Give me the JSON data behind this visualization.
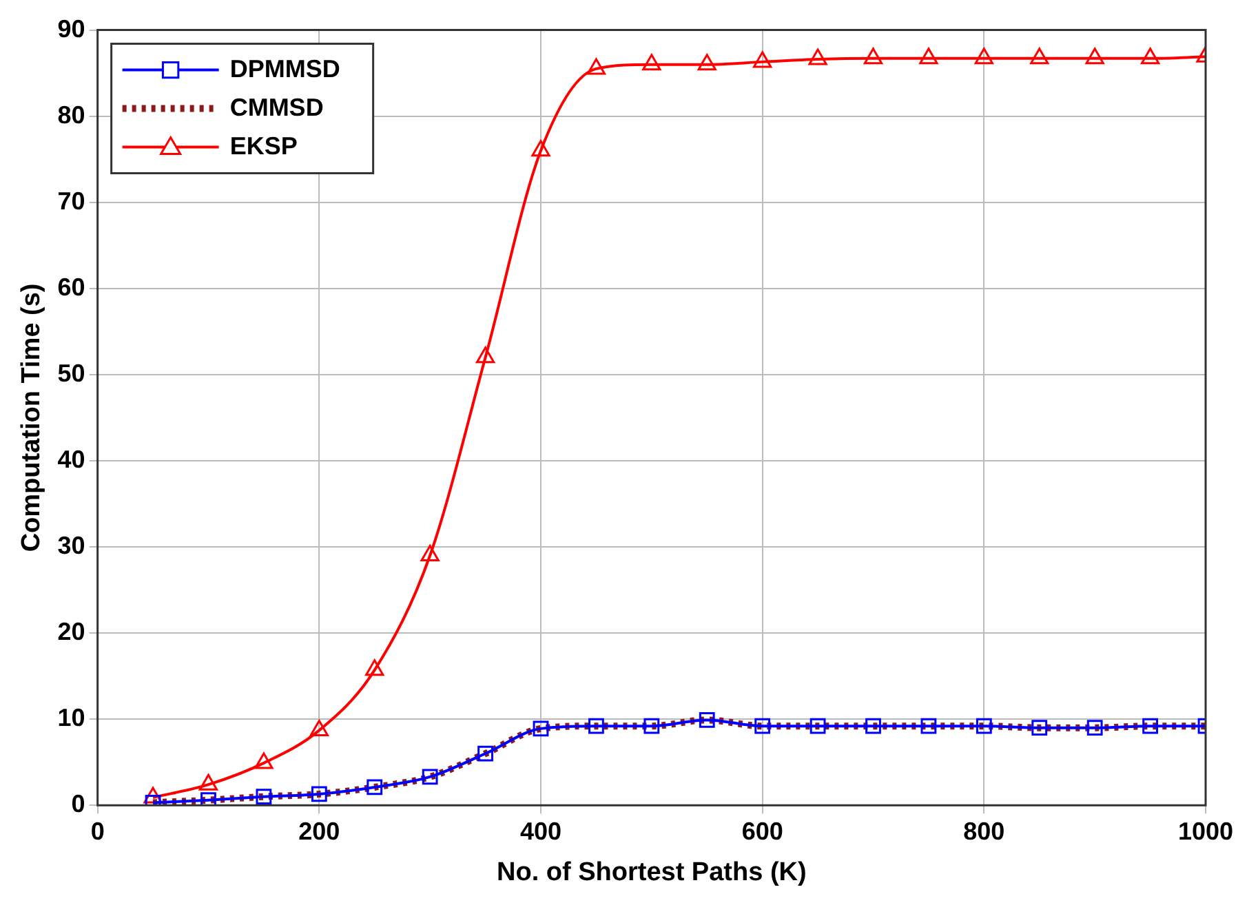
{
  "chart_data": {
    "type": "line",
    "xlabel": "No. of Shortest Paths (K)",
    "ylabel": "Computation Time (s)",
    "x": [
      50,
      100,
      150,
      200,
      250,
      300,
      350,
      400,
      450,
      500,
      550,
      600,
      650,
      700,
      750,
      800,
      850,
      900,
      950,
      1000
    ],
    "xlim": [
      0,
      1000
    ],
    "xticks": [
      0,
      200,
      400,
      600,
      800,
      1000
    ],
    "ylim": [
      0,
      90
    ],
    "yticks": [
      0,
      10,
      20,
      30,
      40,
      50,
      60,
      70,
      80,
      90
    ],
    "grid": true,
    "legend": "top left",
    "series": [
      {
        "name": "DPMMSD",
        "color": "#0000ff",
        "marker": "square",
        "line_style": "solid",
        "values": [
          0.3,
          0.6,
          1.0,
          1.3,
          2.1,
          3.3,
          6.0,
          8.9,
          9.2,
          9.2,
          9.9,
          9.2,
          9.2,
          9.2,
          9.2,
          9.2,
          9.0,
          9.0,
          9.2,
          9.2
        ]
      },
      {
        "name": "CMMSD",
        "color": "#8b1a1a",
        "marker": "none",
        "line_style": "dotted",
        "values": [
          0.3,
          0.6,
          1.0,
          1.3,
          2.1,
          3.3,
          6.0,
          8.9,
          9.2,
          9.2,
          9.9,
          9.2,
          9.2,
          9.2,
          9.2,
          9.2,
          9.0,
          9.0,
          9.2,
          9.2
        ]
      },
      {
        "name": "EKSP",
        "color": "#ff0000",
        "marker": "triangle",
        "line_style": "solid",
        "values": [
          0.9,
          2.4,
          4.9,
          8.7,
          15.7,
          29,
          52,
          76,
          85.5,
          86,
          86,
          86.3,
          86.6,
          86.7,
          86.7,
          86.7,
          86.7,
          86.7,
          86.7,
          86.9
        ]
      }
    ]
  }
}
